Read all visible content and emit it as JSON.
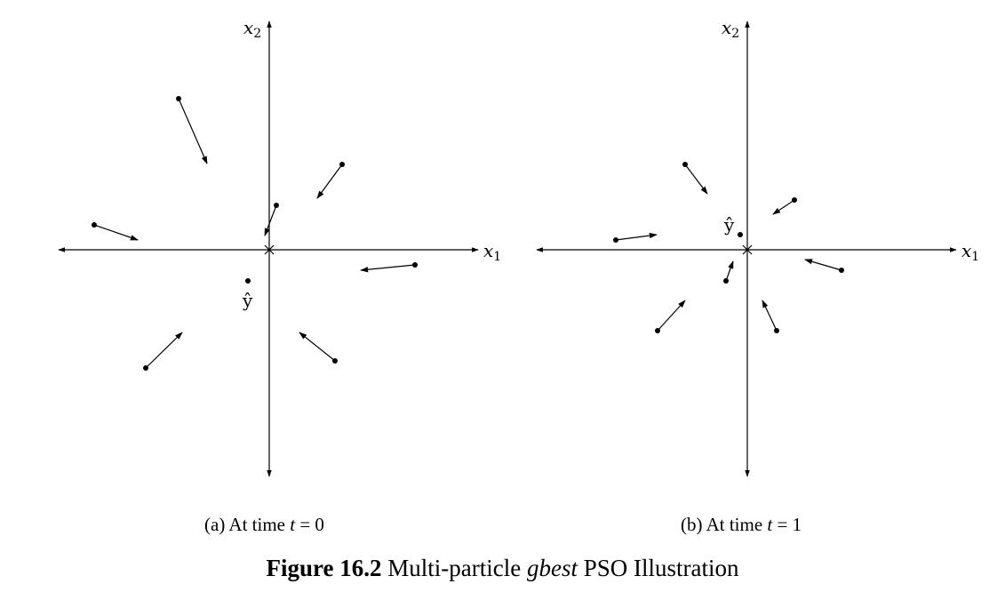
{
  "panels": [
    {
      "id": "a",
      "axis_x_label": "x",
      "axis_x_sub": "1",
      "axis_y_label": "x",
      "axis_y_sub": "2",
      "best_label": "ŷ",
      "caption_prefix": "(a) At time ",
      "caption_var": "t",
      "caption_suffix": " = 0"
    },
    {
      "id": "b",
      "axis_x_label": "x",
      "axis_x_sub": "1",
      "axis_y_label": "x",
      "axis_y_sub": "2",
      "best_label": "ŷ",
      "caption_prefix": "(b) At time ",
      "caption_var": "t",
      "caption_suffix": " = 1"
    }
  ],
  "figure_caption": {
    "number": "Figure 16.2",
    "text_before": " Multi-particle ",
    "emphasis": "gbest",
    "text_after": " PSO Illustration"
  }
}
